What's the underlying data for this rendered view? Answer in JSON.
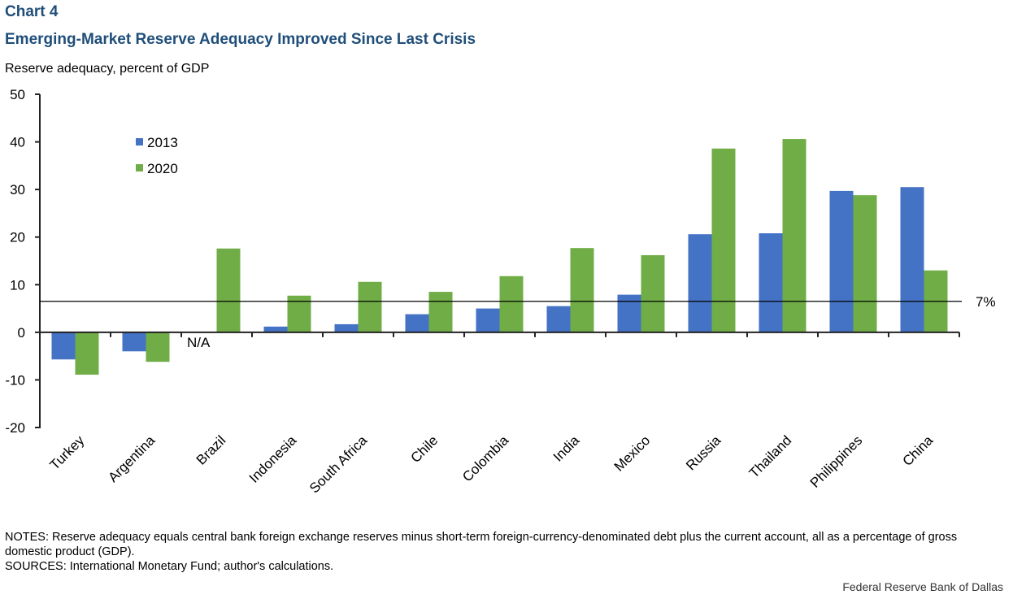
{
  "header": {
    "chart_number": "Chart 4",
    "title": "Emerging-Market Reserve Adequacy Improved  Since Last Crisis",
    "axis_caption": "Reserve adequacy, percent of GDP"
  },
  "footer": {
    "notes": "NOTES: Reserve adequacy equals central bank foreign exchange reserves minus short-term foreign-currency-denominated  debt plus the current account, all as a percentage of gross domestic product (GDP).",
    "sources": "SOURCES: International Monetary Fund; author's calculations.",
    "credit": "Federal Reserve  Bank of Dallas"
  },
  "chart_data": {
    "type": "bar",
    "title": "Emerging-Market Reserve Adequacy Improved Since Last Crisis",
    "xlabel": "",
    "ylabel": "Reserve adequacy, percent of GDP",
    "ylim": [
      -20,
      50
    ],
    "yticks": [
      50,
      40,
      30,
      20,
      10,
      0,
      -10,
      -20
    ],
    "grid": false,
    "legend_position": "top-left",
    "categories": [
      "Turkey",
      "Argentina",
      "Brazil",
      "Indonesia",
      "South Africa",
      "Chile",
      "Colombia",
      "India",
      "Mexico",
      "Russia",
      "Thailand",
      "Philippines",
      "China"
    ],
    "series": [
      {
        "name": "2013",
        "color": "#4472C4",
        "values": [
          -5.7,
          -4.0,
          null,
          1.2,
          1.7,
          3.8,
          5.0,
          5.5,
          7.9,
          20.6,
          20.8,
          29.7,
          30.5
        ]
      },
      {
        "name": "2020",
        "color": "#70AD47",
        "values": [
          -8.9,
          -6.2,
          17.6,
          7.7,
          10.6,
          8.5,
          11.8,
          17.7,
          16.2,
          38.6,
          40.6,
          28.8,
          13.0
        ]
      }
    ],
    "annotations": [
      {
        "text": "N/A",
        "category": "Brazil",
        "series": "2013"
      },
      {
        "text": "7%",
        "type": "reference-line",
        "value": 6.5
      }
    ]
  }
}
